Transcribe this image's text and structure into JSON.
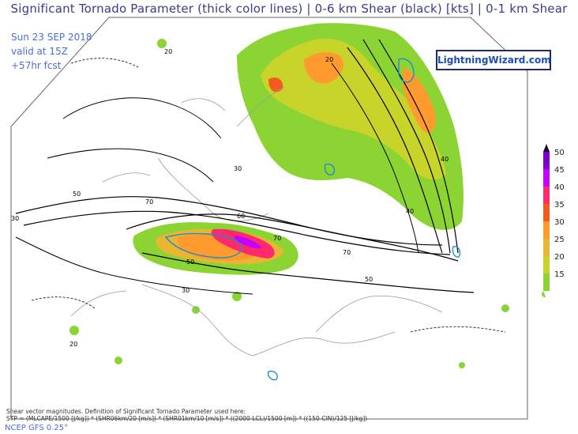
{
  "title": "Significant Tornado Parameter (thick color lines) | 0-6 km Shear (black) [kts] | 0-1 km Shear",
  "run_info": {
    "date": "Sun 23 SEP 2018",
    "valid": "valid at 15Z",
    "forecast": "+57hr fcst"
  },
  "brand": "LightningWizard.com",
  "legend": {
    "values": [
      "50",
      "45",
      "40",
      "35",
      "30",
      "25",
      "20",
      "15"
    ],
    "colors": [
      "#7a00c9",
      "#c400ff",
      "#ff2a6e",
      "#f25c1e",
      "#ff9a2e",
      "#e9b634",
      "#c8d42a",
      "#8bd433"
    ]
  },
  "contour_labels": [
    "20",
    "30",
    "40",
    "50",
    "60",
    "70"
  ],
  "footnote": {
    "line1": "Shear vector magnitudes. Definition of Significant Tornado Parameter used here:",
    "line2": "STP = (MLCAPE/1500 [J/kg]) * (SHR06km/20 [m/s]) * (SHR01km/10 [m/s]) * ((2000-LCL)/1500 [m]) * ((150-CIN)/125 [J/kg])"
  },
  "source": "NCEP GFS 0.25°",
  "colors": {
    "title": "#3b3b8c",
    "info": "#4a6fd6",
    "coast": "#9a9a9a",
    "shear": "#000000"
  }
}
